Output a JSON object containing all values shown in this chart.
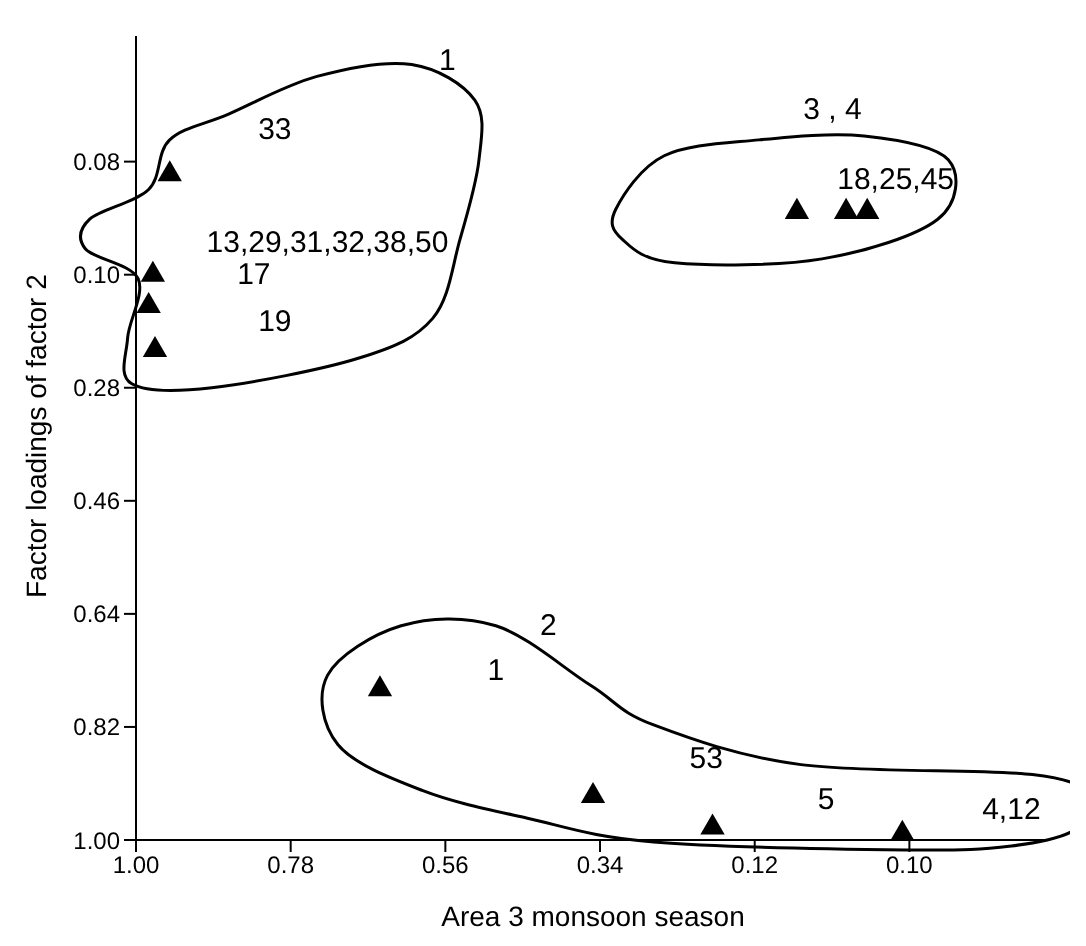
{
  "chart_data": {
    "type": "scatter",
    "xlabel": "Area 3 monsoon season",
    "ylabel": "Factor loadings of factor 2",
    "x": [
      0.952,
      0.976,
      0.982,
      0.973,
      0.06,
      -0.01,
      -0.04,
      0.653,
      0.35,
      0.18,
      -0.09
    ],
    "series": [
      {
        "color": "#000000",
        "values": [
          -0.06,
          0.1,
          0.15,
          0.22,
          0.0,
          0.0,
          0.0,
          0.76,
          0.93,
          0.98,
          0.99
        ]
      }
    ],
    "marker": "triangle",
    "grid": false,
    "xlim": [
      1.0,
      -0.3
    ],
    "ylim": [
      1.0,
      -0.28
    ],
    "xticks": [
      {
        "value": 1.0,
        "label": "1.00"
      },
      {
        "value": 0.78,
        "label": "0.78"
      },
      {
        "value": 0.56,
        "label": "0.56"
      },
      {
        "value": 0.34,
        "label": "0.34"
      },
      {
        "value": 0.12,
        "label": "0.12"
      },
      {
        "value": -0.1,
        "label": "0.10"
      }
    ],
    "yticks": [
      {
        "value": -0.08,
        "label": "0.08"
      },
      {
        "value": 0.1,
        "label": "0.10"
      },
      {
        "value": 0.28,
        "label": "0.28"
      },
      {
        "value": 0.46,
        "label": "0.46"
      },
      {
        "value": 0.64,
        "label": "0.64"
      },
      {
        "value": 0.82,
        "label": "0.82"
      },
      {
        "value": 1.0,
        "label": "1.00"
      }
    ],
    "annotations": [
      "1",
      "33",
      "13,29,31,32,38,50",
      "17",
      "19",
      "3 , 4",
      "18,25,45",
      "2",
      "1",
      "53",
      "5",
      "4,12"
    ]
  }
}
